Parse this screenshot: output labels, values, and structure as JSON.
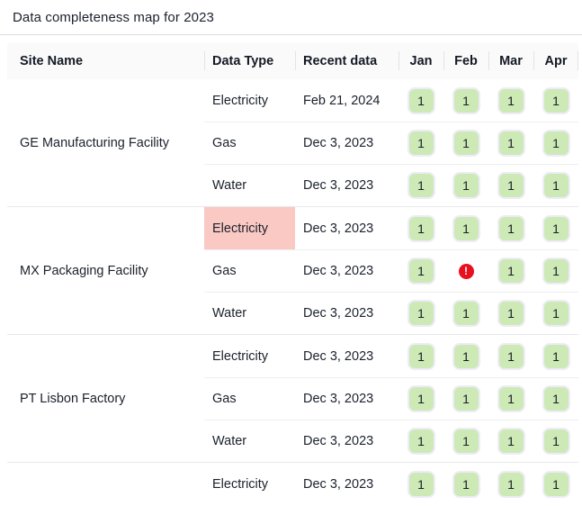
{
  "title": "Data completeness map for 2023",
  "table": {
    "columns": [
      "Site Name",
      "Data Type",
      "Recent data",
      "Jan",
      "Feb",
      "Mar",
      "Apr"
    ],
    "groups": [
      {
        "site": "GE Manufacturing Facility",
        "rows": [
          {
            "data_type": "Electricity",
            "recent": "Feb 21, 2024",
            "highlight": false,
            "months": [
              "1",
              "1",
              "1",
              "1"
            ]
          },
          {
            "data_type": "Gas",
            "recent": "Dec 3, 2023",
            "highlight": false,
            "months": [
              "1",
              "1",
              "1",
              "1"
            ]
          },
          {
            "data_type": "Water",
            "recent": "Dec 3, 2023",
            "highlight": false,
            "months": [
              "1",
              "1",
              "1",
              "1"
            ]
          }
        ]
      },
      {
        "site": "MX Packaging Facility",
        "rows": [
          {
            "data_type": "Electricity",
            "recent": "Dec 3, 2023",
            "highlight": true,
            "months": [
              "1",
              "1",
              "1",
              "1"
            ]
          },
          {
            "data_type": "Gas",
            "recent": "Dec 3, 2023",
            "highlight": false,
            "months": [
              "1",
              "error",
              "1",
              "1"
            ]
          },
          {
            "data_type": "Water",
            "recent": "Dec 3, 2023",
            "highlight": false,
            "months": [
              "1",
              "1",
              "1",
              "1"
            ]
          }
        ]
      },
      {
        "site": "PT Lisbon Factory",
        "rows": [
          {
            "data_type": "Electricity",
            "recent": "Dec 3, 2023",
            "highlight": false,
            "months": [
              "1",
              "1",
              "1",
              "1"
            ]
          },
          {
            "data_type": "Gas",
            "recent": "Dec 3, 2023",
            "highlight": false,
            "months": [
              "1",
              "1",
              "1",
              "1"
            ]
          },
          {
            "data_type": "Water",
            "recent": "Dec 3, 2023",
            "highlight": false,
            "months": [
              "1",
              "1",
              "1",
              "1"
            ]
          }
        ]
      },
      {
        "site": "",
        "rows": [
          {
            "data_type": "Electricity",
            "recent": "Dec 3, 2023",
            "highlight": false,
            "months": [
              "1",
              "1",
              "1",
              "1"
            ]
          }
        ]
      }
    ],
    "error_glyph": "!",
    "colors": {
      "badge_ok_bg": "#cdeab6",
      "badge_ok_border": "#edecf7",
      "badge_text": "#171c26",
      "highlight_bg": "#fbc9c3",
      "error_red": "#e8101f",
      "header_bg": "#fafafa"
    }
  }
}
